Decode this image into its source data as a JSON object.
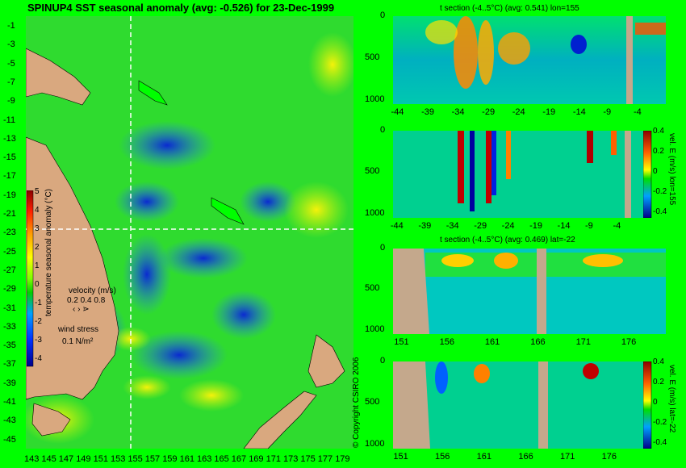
{
  "chart_data": [
    {
      "type": "heatmap",
      "title": "SPINUP4 SST seasonal anomaly (avg: -0.526) for 23-Dec-1999",
      "x_ticks": [
        "143",
        "145",
        "147",
        "149",
        "151",
        "153",
        "155",
        "157",
        "159",
        "161",
        "163",
        "165",
        "167",
        "169",
        "171",
        "173",
        "175",
        "177",
        "179"
      ],
      "y_ticks": [
        "-1",
        "-3",
        "-5",
        "-7",
        "-9",
        "-11",
        "-13",
        "-15",
        "-17",
        "-19",
        "-21",
        "-23",
        "-25",
        "-27",
        "-29",
        "-31",
        "-33",
        "-35",
        "-37",
        "-39",
        "-41",
        "-43",
        "-45"
      ],
      "xlim": [
        143,
        180
      ],
      "ylim": [
        -45,
        0
      ],
      "section_lines": {
        "lon": 155,
        "lat": -22
      },
      "colorbar": {
        "label": "temperature seasonal anomaly (°C)",
        "ticks": [
          "5",
          "4",
          "3",
          "2",
          "1",
          "0",
          "-1",
          "-2",
          "-3",
          "-4"
        ],
        "range": [
          -4,
          5
        ]
      },
      "velocity_legend": {
        "label": "velocity (m/s)",
        "values": "0.2 0.4 0.8"
      },
      "wind_legend": {
        "label": "wind stress",
        "value": "0.1 N/m²"
      }
    },
    {
      "type": "heatmap",
      "title": "t section (-4..5°C) (avg: 0.541) lon=155",
      "x_ticks": [
        "-44",
        "-39",
        "-34",
        "-29",
        "-24",
        "-19",
        "-14",
        "-9",
        "-4"
      ],
      "y_ticks": [
        "0",
        "500",
        "1000"
      ],
      "xlim": [
        -45,
        0
      ],
      "ylim": [
        1050,
        0
      ]
    },
    {
      "type": "heatmap",
      "x_ticks": [
        "-44",
        "-39",
        "-34",
        "-29",
        "-24",
        "-19",
        "-14",
        "-9",
        "-4"
      ],
      "y_ticks": [
        "0",
        "500",
        "1000"
      ],
      "xlim": [
        -45,
        0
      ],
      "ylim": [
        1050,
        0
      ],
      "colorbar": {
        "label": "vel. E (m/s) lon=155",
        "ticks": [
          "0.4",
          "0.2",
          "0",
          "-0.2",
          "-0.4"
        ],
        "range": [
          -0.4,
          0.4
        ]
      }
    },
    {
      "type": "heatmap",
      "title": "t section (-4..5°C) (avg: 0.469) lat=-22",
      "x_ticks": [
        "151",
        "156",
        "161",
        "166",
        "171",
        "176"
      ],
      "y_ticks": [
        "0",
        "500",
        "1000"
      ],
      "xlim": [
        150,
        180
      ],
      "ylim": [
        1050,
        0
      ]
    },
    {
      "type": "heatmap",
      "x_ticks": [
        "151",
        "156",
        "161",
        "166",
        "171",
        "176"
      ],
      "y_ticks": [
        "0",
        "500",
        "1000"
      ],
      "xlim": [
        150,
        180
      ],
      "ylim": [
        1050,
        0
      ],
      "colorbar": {
        "label": "vel. E (m/s) lat=-22",
        "ticks": [
          "0.4",
          "0.2",
          "0",
          "-0.2",
          "-0.4"
        ],
        "range": [
          -0.4,
          0.4
        ]
      }
    }
  ],
  "copyright": "© Copyright CSIRO 2006",
  "colors": {
    "background": "#00ff00",
    "land": "#d9a87f",
    "section_land": "#c4a88c"
  }
}
